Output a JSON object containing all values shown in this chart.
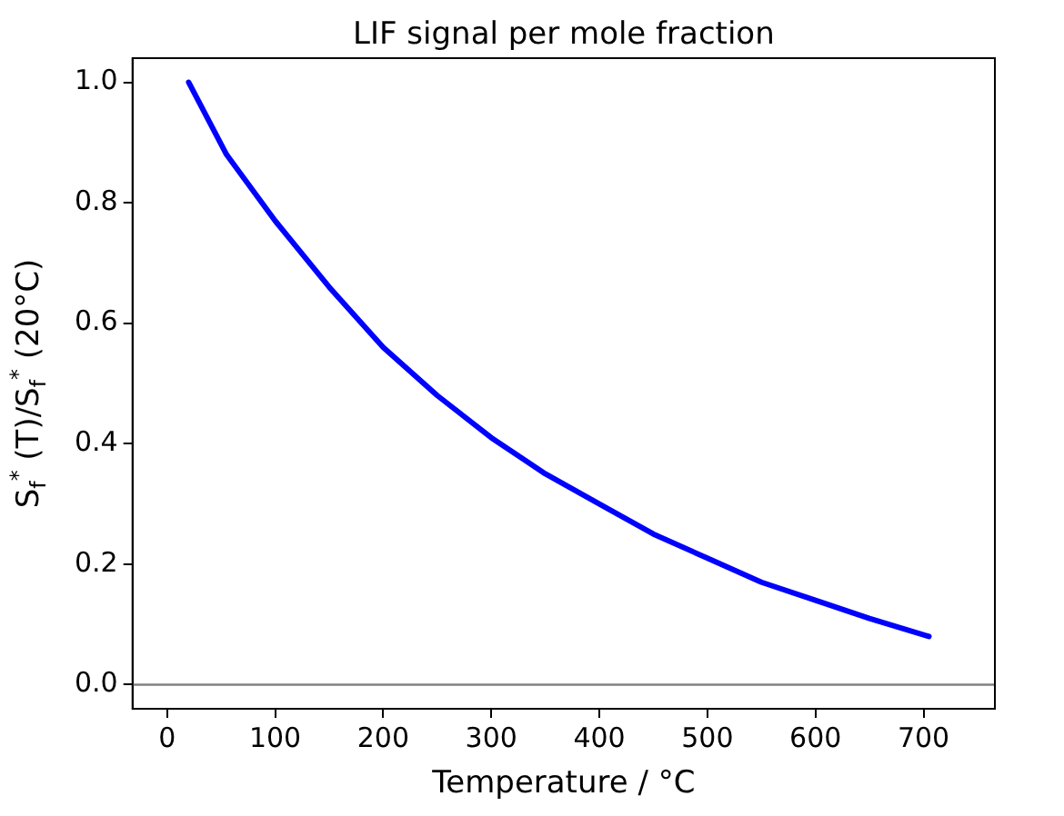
{
  "chart_data": {
    "type": "line",
    "title": "LIF signal per mole fraction",
    "xlabel": "Temperature / °C",
    "ylabel": "S$_{f}$$^{*}$ (T)/S$_{f}$$^{*}$ (20°C)",
    "x": [
      20,
      55,
      100,
      150,
      200,
      250,
      300,
      350,
      400,
      450,
      500,
      550,
      600,
      650,
      705
    ],
    "series": [
      {
        "color": "#0000ff",
        "values": [
          1.0,
          0.88,
          0.77,
          0.66,
          0.56,
          0.48,
          0.41,
          0.35,
          0.3,
          0.25,
          0.21,
          0.17,
          0.14,
          0.11,
          0.08
        ]
      }
    ],
    "xlim": [
      -32,
      766
    ],
    "xticks": [
      0,
      100,
      200,
      300,
      400,
      500,
      600,
      700
    ],
    "ylim": [
      -0.04,
      1.04
    ],
    "yticks": [
      {
        "value": 0,
        "label": "0.0"
      },
      0.2,
      0.4,
      0.6,
      0.8,
      {
        "value": 1,
        "label": "1.0"
      }
    ],
    "ref_lines": [
      {
        "axis": "y",
        "value": 0,
        "color": "#808080"
      }
    ],
    "grid": false,
    "legend": false,
    "marker": "none",
    "line_style": "solid"
  }
}
